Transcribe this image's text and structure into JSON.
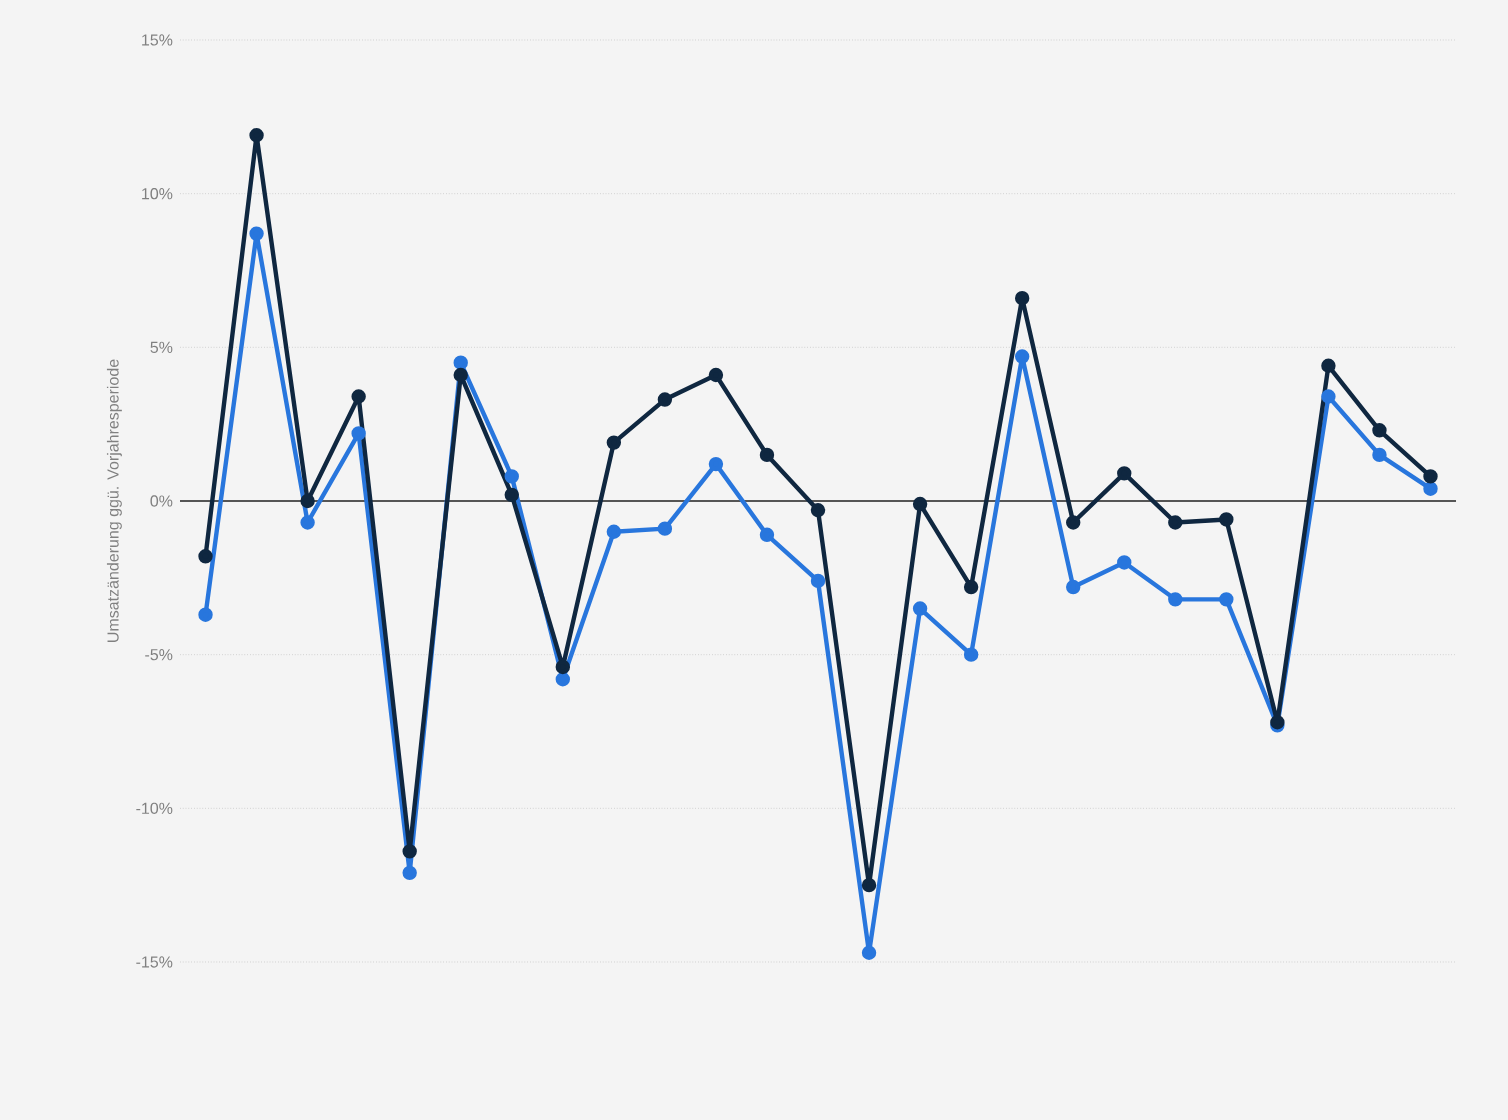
{
  "chart_data": {
    "type": "line",
    "ylabel": "Umsatzänderung ggü. Vorjahresperiode",
    "categories": [
      null,
      null,
      null,
      null,
      null,
      null,
      null,
      null,
      null,
      null,
      null,
      null,
      null,
      null,
      null,
      null,
      null,
      null,
      null,
      null,
      null,
      null,
      null,
      null,
      null
    ],
    "series": [
      {
        "color": "#2876dd",
        "values": [
          -3.7,
          8.7,
          -0.7,
          2.2,
          -12.1,
          4.5,
          0.8,
          -5.8,
          -1.0,
          -0.9,
          1.2,
          -1.1,
          -2.6,
          -14.7,
          -3.5,
          -5.0,
          4.7,
          -2.8,
          -2.0,
          -3.2,
          -3.2,
          -7.3,
          3.4,
          1.5,
          0.4
        ]
      },
      {
        "color": "#0f2740",
        "values": [
          -1.8,
          11.9,
          0.0,
          3.4,
          -11.4,
          4.1,
          0.2,
          -5.4,
          1.9,
          3.3,
          4.1,
          1.5,
          -0.3,
          -12.5,
          -0.1,
          -2.8,
          6.6,
          -0.7,
          0.9,
          -0.7,
          -0.6,
          -7.2,
          4.4,
          2.3,
          0.8
        ]
      }
    ],
    "ylim": [
      -15,
      15
    ],
    "yticks": [
      {
        "value": -15,
        "label": "-15%"
      },
      {
        "value": -10,
        "label": "-10%"
      },
      {
        "value": -5,
        "label": "-5%"
      },
      {
        "value": 0,
        "label": "0%"
      },
      {
        "value": 5,
        "label": "5%"
      },
      {
        "value": 10,
        "label": "10%"
      },
      {
        "value": 15,
        "label": "15%"
      }
    ],
    "ref_lines": [
      {
        "axis": "y",
        "value": 0,
        "color": "#555555"
      }
    ],
    "grid": "y",
    "marker": "circle",
    "line_style": "solid"
  }
}
